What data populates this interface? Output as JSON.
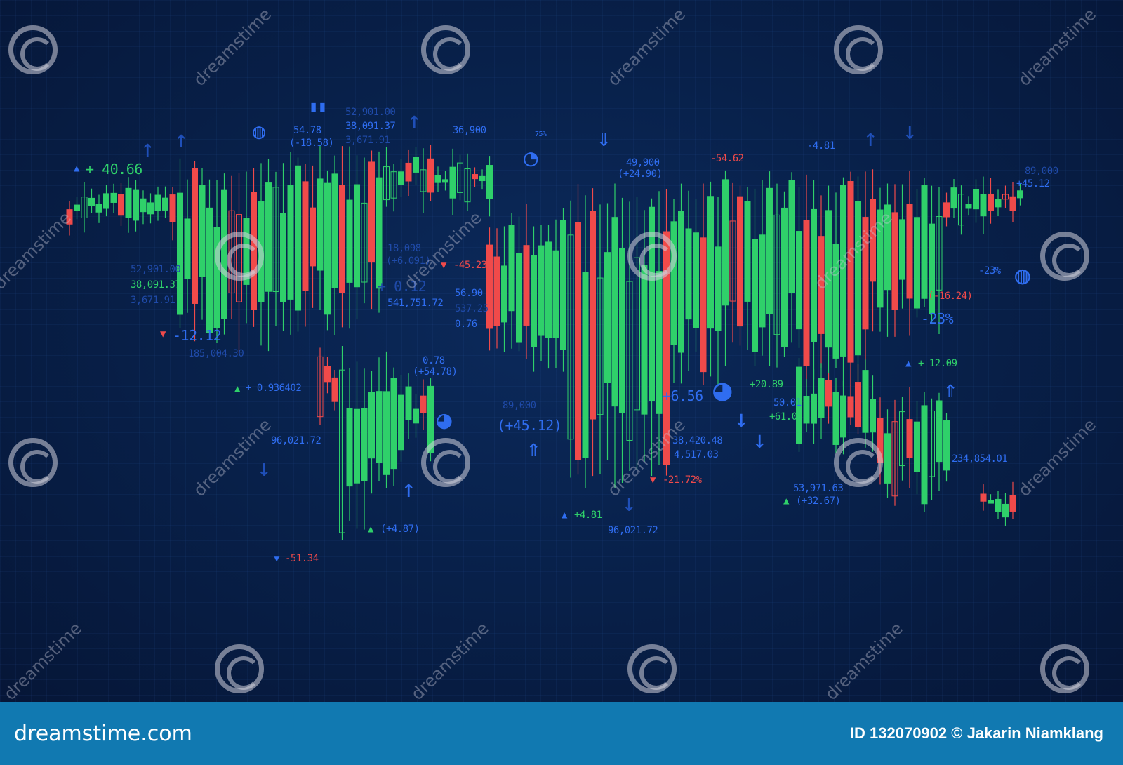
{
  "colors": {
    "background": "#08214b",
    "bullish": "#2fd06a",
    "bearish": "#f04a4a",
    "accent": "#2f6df0",
    "footer": "#1179b1"
  },
  "labels": {
    "l1": "+ 40.66",
    "l2": "54.78",
    "l3": "(-18.58)",
    "l4": "52,901.00",
    "l5": "38,091.37",
    "l6": "3,671.91",
    "l7": "36,900",
    "l8": "75%",
    "l9": "49,900",
    "l10": "(+24.90)",
    "l11": "-54.62",
    "l12": "-4.81",
    "l13": "+45.12",
    "l14": "89,000",
    "l15": "38,091.37",
    "l16": "52,901.00",
    "l17": "3,671.91",
    "l18": "-12.12",
    "l19": "185,004.30",
    "l20": "+ 0.936402",
    "l21": "18,098",
    "l22": "(+6.091)",
    "l23": "-45.23",
    "l24": "56.90",
    "l25": "537.25",
    "l26": "0.76",
    "l27": "0.78",
    "l28": "(+54.78)",
    "l29": "89,000",
    "l30": "(+45.12)",
    "l31": "+6.56",
    "l32": "+20.89",
    "l33": "50.01",
    "l34": "+61.02",
    "l35": "96,021.72",
    "l36": "38,420.48",
    "l37": "4,517.03",
    "l38": "-21.72%",
    "l39": "+4.81",
    "l40": "96,021.72",
    "l41": "53,971.63",
    "l42": "(+32.67)",
    "l43": "+ 12.09",
    "l44": "-23%",
    "l45": "-23%",
    "l46": "(-16.24)",
    "l47": "-51.34",
    "l48": "(+4.87)",
    "l49": "96,021.72",
    "l50": "234,854.01",
    "l51": "+ 0.12",
    "l52": "541,751.72"
  },
  "watermark": {
    "text": "dreamstime"
  },
  "footer": {
    "logo": "dreamstime.com",
    "credit": "ID 132070902 © Jakarin Niamklang"
  }
}
